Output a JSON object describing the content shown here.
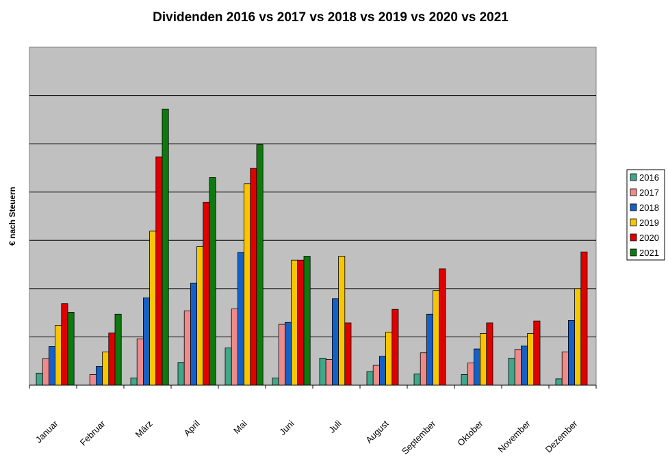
{
  "chart_data": {
    "type": "bar",
    "title": "Dividenden 2016 vs 2017 vs 2018 vs 2019 vs 2020 vs 2021",
    "xlabel": "",
    "ylabel": "€ nach Steuern",
    "ylim": [
      0,
      7
    ],
    "yticks_labeled": false,
    "grid": true,
    "legend_position": "right",
    "categories": [
      "Januar",
      "Februar",
      "März",
      "April",
      "Mai",
      "Juni",
      "Juli",
      "August",
      "September",
      "Oktober",
      "November",
      "Dezember"
    ],
    "series": [
      {
        "name": "2016",
        "color": "#3fa88a",
        "values": [
          0.25,
          0,
          0.15,
          0.47,
          0.77,
          0.15,
          0.56,
          0.28,
          0.23,
          0.22,
          0.56,
          0.13
        ]
      },
      {
        "name": "2017",
        "color": "#ef8a8a",
        "values": [
          0.55,
          0.22,
          0.96,
          1.54,
          1.58,
          1.26,
          0.53,
          0.41,
          0.67,
          0.46,
          0.74,
          0.69
        ]
      },
      {
        "name": "2018",
        "color": "#1560c8",
        "values": [
          0.8,
          0.39,
          1.81,
          2.11,
          2.75,
          1.3,
          1.79,
          0.6,
          1.47,
          0.75,
          0.81,
          1.34
        ]
      },
      {
        "name": "2019",
        "color": "#f7c600",
        "values": [
          1.24,
          0.69,
          3.19,
          2.87,
          4.17,
          2.59,
          2.67,
          1.1,
          1.96,
          1.07,
          1.07,
          2.0
        ]
      },
      {
        "name": "2020",
        "color": "#e00000",
        "values": [
          1.69,
          1.08,
          4.73,
          3.79,
          4.49,
          2.59,
          1.29,
          1.57,
          2.41,
          1.29,
          1.33,
          2.76
        ]
      },
      {
        "name": "2021",
        "color": "#0e7a0e",
        "values": [
          1.51,
          1.47,
          5.72,
          4.3,
          4.98,
          2.67,
          null,
          null,
          null,
          null,
          null,
          null
        ]
      }
    ]
  }
}
